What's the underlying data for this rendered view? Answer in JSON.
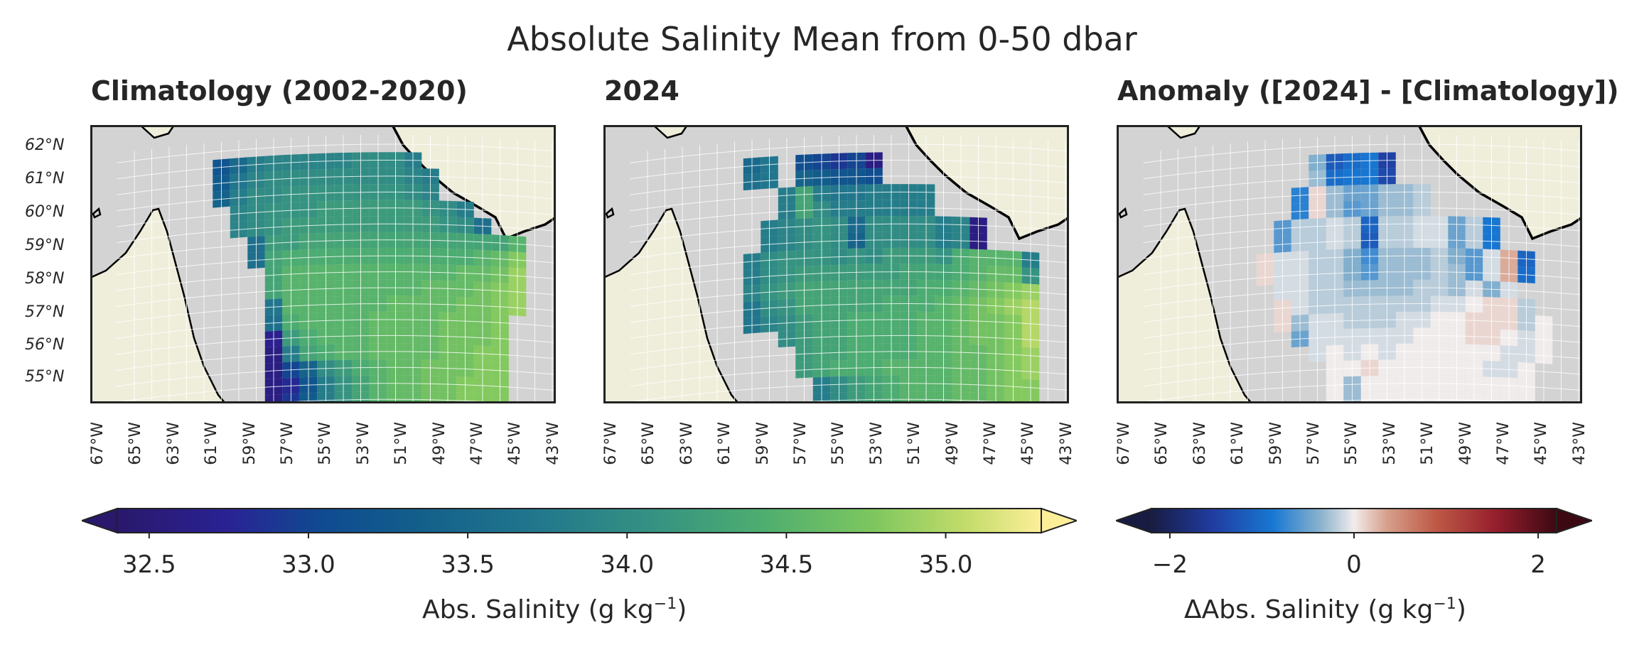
{
  "figure": {
    "suptitle": "Absolute Salinity Mean from 0-50 dbar"
  },
  "panels": [
    {
      "id": "clim",
      "title": "Climatology (2002-2020)"
    },
    {
      "id": "y2024",
      "title": "2024"
    },
    {
      "id": "anom",
      "title": "Anomaly ([2024] - [Climatology])"
    }
  ],
  "axes": {
    "lat_ticks": [
      "62°N",
      "61°N",
      "60°N",
      "59°N",
      "58°N",
      "57°N",
      "56°N",
      "55°N"
    ],
    "lon_ticks": [
      "67°W",
      "65°W",
      "63°W",
      "61°W",
      "59°W",
      "57°W",
      "55°W",
      "53°W",
      "51°W",
      "49°W",
      "47°W",
      "45°W",
      "43°W"
    ]
  },
  "colorbars": {
    "salinity": {
      "label_prefix": "Abs. Salinity (g kg",
      "label_exp": "−1",
      "label_suffix": ")",
      "ticks": [
        "32.5",
        "33.0",
        "33.5",
        "34.0",
        "34.5",
        "35.0"
      ],
      "range": [
        32.4,
        35.3
      ],
      "colormap": "haline"
    },
    "anomaly": {
      "label_prefix": "ΔAbs. Salinity (g kg",
      "label_exp": "−1",
      "label_suffix": ")",
      "ticks": [
        "−2",
        "0",
        "2"
      ],
      "range": [
        -2.2,
        2.2
      ],
      "colormap": "balance"
    }
  },
  "colors": {
    "land": "#efeedb",
    "ocean": "#d3d3d3",
    "coast": "#000000",
    "grid": "#ffffff"
  },
  "chart_data": [
    {
      "type": "heatmap",
      "title": "Climatology (2002-2020)",
      "colorbar": "Abs. Salinity (g kg−1)",
      "x": [
        -62,
        -61,
        -60,
        -59,
        -58,
        -57,
        -56,
        -55,
        -54,
        -53,
        -52,
        -51,
        -50,
        -49,
        -48,
        -47,
        -46,
        -45,
        -44
      ],
      "y": [
        62,
        61.5,
        61,
        60.5,
        60,
        59.5,
        59,
        58.5,
        58,
        57.5,
        57,
        56.5,
        56,
        55.5,
        55,
        54.5
      ],
      "values": [
        [
          33.2,
          33.5,
          33.8,
          33.9,
          33.9,
          33.9,
          33.9,
          33.9,
          34.0,
          34.0,
          34.0,
          33.8,
          null,
          null,
          null,
          null,
          null,
          null,
          null
        ],
        [
          33.3,
          33.7,
          33.9,
          34.0,
          34.0,
          34.0,
          34.0,
          34.0,
          34.0,
          34.0,
          34.0,
          33.9,
          33.8,
          null,
          null,
          null,
          null,
          null,
          null
        ],
        [
          33.4,
          33.8,
          34.0,
          34.0,
          34.1,
          34.1,
          34.1,
          34.1,
          34.1,
          34.1,
          34.1,
          34.0,
          33.9,
          null,
          null,
          null,
          null,
          null,
          null
        ],
        [
          null,
          33.9,
          34.0,
          34.1,
          34.1,
          34.1,
          34.2,
          34.2,
          34.2,
          34.2,
          34.2,
          34.2,
          34.1,
          34.0,
          33.8,
          null,
          null,
          null,
          null
        ],
        [
          null,
          33.9,
          34.0,
          34.1,
          34.2,
          34.2,
          34.2,
          34.2,
          34.2,
          34.2,
          34.2,
          34.2,
          34.2,
          34.1,
          34.0,
          33.6,
          null,
          null,
          null
        ],
        [
          null,
          null,
          33.6,
          34.2,
          34.2,
          34.3,
          34.3,
          34.3,
          34.3,
          34.3,
          34.3,
          34.3,
          34.3,
          34.3,
          34.3,
          34.3,
          34.3,
          34.5,
          null
        ],
        [
          null,
          null,
          33.6,
          34.3,
          34.4,
          34.4,
          34.4,
          34.4,
          34.4,
          34.4,
          34.4,
          34.4,
          34.4,
          34.4,
          34.4,
          34.5,
          34.6,
          34.8,
          null
        ],
        [
          null,
          null,
          null,
          34.3,
          34.5,
          34.5,
          34.5,
          34.5,
          34.5,
          34.5,
          34.5,
          34.5,
          34.5,
          34.5,
          34.6,
          34.6,
          34.7,
          34.9,
          null
        ],
        [
          null,
          null,
          null,
          34.3,
          34.5,
          34.5,
          34.5,
          34.5,
          34.5,
          34.5,
          34.5,
          34.5,
          34.6,
          34.6,
          34.6,
          34.7,
          34.8,
          34.9,
          null
        ],
        [
          null,
          null,
          null,
          33.7,
          34.5,
          34.5,
          34.5,
          34.5,
          34.5,
          34.5,
          34.6,
          34.6,
          34.6,
          34.6,
          34.7,
          34.7,
          34.8,
          34.9,
          null
        ],
        [
          null,
          null,
          null,
          33.6,
          34.4,
          34.5,
          34.5,
          34.5,
          34.5,
          34.6,
          34.6,
          34.6,
          34.6,
          34.7,
          34.7,
          34.7,
          34.8,
          null,
          null
        ],
        [
          null,
          null,
          null,
          32.7,
          34.2,
          34.4,
          34.5,
          34.5,
          34.5,
          34.6,
          34.6,
          34.6,
          34.6,
          34.7,
          34.7,
          34.7,
          34.8,
          null,
          null
        ],
        [
          null,
          null,
          null,
          32.6,
          33.8,
          34.3,
          34.4,
          34.5,
          34.5,
          34.6,
          34.6,
          34.6,
          34.6,
          34.7,
          34.7,
          34.8,
          34.8,
          null,
          null
        ],
        [
          null,
          null,
          null,
          32.6,
          33.0,
          33.4,
          34.0,
          34.2,
          34.4,
          34.5,
          34.6,
          34.6,
          34.7,
          34.7,
          34.7,
          34.8,
          34.8,
          null,
          null
        ],
        [
          null,
          null,
          null,
          32.6,
          32.8,
          33.2,
          33.8,
          34.1,
          34.3,
          34.5,
          34.6,
          34.6,
          34.7,
          34.7,
          34.8,
          34.8,
          34.8,
          null,
          null
        ],
        [
          null,
          null,
          null,
          32.6,
          32.9,
          33.3,
          33.8,
          34.1,
          34.3,
          34.5,
          34.6,
          34.6,
          34.7,
          34.7,
          34.8,
          34.8,
          34.8,
          null,
          null
        ]
      ]
    },
    {
      "type": "heatmap",
      "title": "2024",
      "colorbar": "Abs. Salinity (g kg−1)",
      "x": [
        -62,
        -61,
        -60,
        -59,
        -58,
        -57,
        -56,
        -55,
        -54,
        -53,
        -52,
        -51,
        -50,
        -49,
        -48,
        -47,
        -46,
        -45,
        -44
      ],
      "y": [
        62,
        61.5,
        61,
        60.5,
        60,
        59.5,
        59,
        58.5,
        58,
        57.5,
        57,
        56.5,
        56,
        55.5,
        55,
        54.5
      ],
      "values": [
        [
          null,
          33.5,
          33.7,
          null,
          33.1,
          33.0,
          32.9,
          33.0,
          32.6,
          null,
          null,
          null,
          null,
          null,
          null,
          null,
          null,
          null,
          null
        ],
        [
          null,
          33.6,
          33.7,
          null,
          33.4,
          33.3,
          33.2,
          33.2,
          33.1,
          null,
          null,
          null,
          null,
          null,
          null,
          null,
          null,
          null,
          null
        ],
        [
          null,
          null,
          null,
          33.8,
          34.3,
          33.8,
          33.7,
          33.7,
          33.8,
          33.8,
          33.8,
          33.8,
          null,
          null,
          null,
          null,
          null,
          null,
          null
        ],
        [
          null,
          null,
          null,
          33.8,
          34.3,
          34.0,
          33.8,
          33.8,
          33.8,
          33.8,
          33.8,
          33.8,
          null,
          null,
          null,
          null,
          null,
          null,
          null
        ],
        [
          null,
          null,
          33.8,
          33.9,
          34.0,
          34.1,
          34.0,
          33.5,
          34.0,
          34.0,
          34.0,
          34.0,
          33.8,
          33.9,
          32.6,
          null,
          null,
          null,
          null
        ],
        [
          null,
          null,
          33.8,
          33.9,
          34.0,
          34.1,
          34.0,
          33.4,
          34.0,
          34.0,
          34.0,
          34.0,
          33.8,
          33.9,
          32.6,
          null,
          null,
          null,
          null
        ],
        [
          null,
          33.8,
          34.0,
          34.1,
          34.1,
          34.1,
          34.0,
          34.1,
          34.0,
          34.2,
          34.2,
          34.2,
          34.1,
          34.4,
          34.5,
          34.5,
          34.5,
          33.8,
          null
        ],
        [
          null,
          33.8,
          34.0,
          34.1,
          34.2,
          34.2,
          34.2,
          34.2,
          34.2,
          34.2,
          34.3,
          34.3,
          34.3,
          34.4,
          34.5,
          34.6,
          34.6,
          34.1,
          null
        ],
        [
          null,
          33.9,
          34.1,
          34.2,
          34.3,
          34.3,
          34.3,
          34.3,
          34.3,
          34.3,
          34.3,
          34.4,
          34.4,
          34.5,
          34.6,
          34.7,
          34.8,
          34.9,
          null
        ],
        [
          null,
          33.7,
          34.0,
          34.1,
          34.3,
          34.3,
          34.3,
          34.3,
          34.3,
          34.4,
          34.4,
          34.4,
          34.5,
          34.6,
          34.7,
          34.8,
          34.9,
          35.0,
          null
        ],
        [
          null,
          33.7,
          33.9,
          34.0,
          34.2,
          34.3,
          34.3,
          34.4,
          34.4,
          34.4,
          34.4,
          34.5,
          34.5,
          34.6,
          34.7,
          34.7,
          34.8,
          35.0,
          null
        ],
        [
          null,
          null,
          null,
          34.0,
          34.2,
          34.3,
          34.3,
          34.4,
          34.4,
          34.4,
          34.4,
          34.5,
          34.5,
          34.6,
          34.7,
          34.7,
          34.8,
          35.0,
          null
        ],
        [
          null,
          null,
          null,
          null,
          34.2,
          34.3,
          34.3,
          34.4,
          34.4,
          34.4,
          34.4,
          34.5,
          34.5,
          34.6,
          34.6,
          34.7,
          34.8,
          34.9,
          null
        ],
        [
          null,
          null,
          null,
          null,
          34.2,
          34.3,
          34.4,
          34.4,
          34.4,
          34.5,
          34.5,
          34.5,
          34.5,
          34.6,
          34.6,
          34.7,
          34.8,
          34.9,
          null
        ],
        [
          null,
          null,
          null,
          null,
          null,
          33.8,
          34.0,
          34.2,
          34.3,
          34.4,
          34.5,
          34.5,
          34.5,
          34.6,
          34.6,
          34.7,
          34.8,
          34.8,
          null
        ],
        [
          null,
          null,
          null,
          null,
          null,
          33.8,
          34.0,
          34.2,
          34.3,
          34.4,
          34.5,
          34.5,
          34.5,
          34.6,
          34.6,
          34.7,
          34.8,
          34.8,
          null
        ]
      ]
    },
    {
      "type": "heatmap",
      "title": "Anomaly ([2024] - [Climatology])",
      "colorbar": "ΔAbs. Salinity (g kg−1)",
      "x": [
        -62,
        -61,
        -60,
        -59,
        -58,
        -57,
        -56,
        -55,
        -54,
        -53,
        -52,
        -51,
        -50,
        -49,
        -48,
        -47,
        -46,
        -45,
        -44
      ],
      "y": [
        62,
        61.5,
        61,
        60.5,
        60,
        59.5,
        59,
        58.5,
        58,
        57.5,
        57,
        56.5,
        56,
        55.5,
        55,
        54.5
      ],
      "values": [
        [
          null,
          null,
          null,
          null,
          -0.4,
          -1.2,
          -1.0,
          -0.9,
          -1.5,
          null,
          null,
          null,
          null,
          null,
          null,
          null,
          null,
          null,
          null
        ],
        [
          null,
          null,
          null,
          null,
          -0.3,
          -1.0,
          -0.9,
          -0.9,
          -1.4,
          null,
          null,
          null,
          null,
          null,
          null,
          null,
          null,
          null,
          null
        ],
        [
          null,
          null,
          null,
          -0.8,
          0.1,
          -0.3,
          -0.5,
          -0.5,
          -0.3,
          -0.3,
          -0.2,
          null,
          null,
          null,
          null,
          null,
          null,
          null,
          null
        ],
        [
          null,
          null,
          null,
          -0.8,
          0.1,
          -0.3,
          -0.6,
          -0.5,
          -0.3,
          -0.3,
          -0.2,
          null,
          null,
          null,
          null,
          null,
          null,
          null,
          null
        ],
        [
          null,
          null,
          -0.6,
          -0.2,
          -0.2,
          -0.1,
          -0.2,
          -1.1,
          -0.2,
          -0.2,
          -0.1,
          -0.1,
          -0.5,
          -0.2,
          -0.9,
          null,
          null,
          null,
          null
        ],
        [
          null,
          null,
          -0.6,
          -0.2,
          -0.2,
          -0.1,
          -0.2,
          -1.2,
          -0.2,
          -0.2,
          -0.1,
          -0.1,
          -0.5,
          -0.2,
          -0.9,
          null,
          null,
          null,
          null
        ],
        [
          null,
          0.1,
          -0.1,
          -0.1,
          -0.2,
          -0.2,
          -0.4,
          -0.7,
          -0.3,
          -0.3,
          -0.3,
          -0.2,
          -0.4,
          -0.6,
          -0.1,
          0.3,
          -1.1,
          null,
          null
        ],
        [
          null,
          0.1,
          -0.1,
          -0.1,
          -0.2,
          -0.2,
          -0.4,
          -0.6,
          -0.3,
          -0.3,
          -0.3,
          -0.2,
          -0.3,
          -0.6,
          -0.1,
          0.3,
          -1.0,
          null,
          null
        ],
        [
          null,
          null,
          -0.1,
          -0.1,
          -0.2,
          -0.2,
          -0.3,
          -0.3,
          -0.3,
          -0.3,
          -0.2,
          -0.2,
          -0.3,
          -0.1,
          -0.4,
          -0.1,
          null,
          null,
          null
        ],
        [
          null,
          null,
          0.1,
          -0.1,
          -0.2,
          -0.2,
          -0.2,
          -0.2,
          -0.2,
          -0.2,
          -0.2,
          -0.1,
          -0.1,
          0.0,
          0.1,
          0.1,
          -0.2,
          null,
          null
        ],
        [
          null,
          null,
          0.1,
          -0.3,
          -0.1,
          -0.1,
          -0.2,
          -0.2,
          -0.2,
          -0.1,
          -0.1,
          0.0,
          0.0,
          0.1,
          0.1,
          0.1,
          -0.2,
          0.0,
          null
        ],
        [
          null,
          null,
          null,
          -0.5,
          -0.1,
          -0.1,
          -0.1,
          -0.1,
          -0.1,
          -0.1,
          0.0,
          0.0,
          0.0,
          0.1,
          0.1,
          0.0,
          -0.1,
          0.0,
          null
        ],
        [
          null,
          null,
          null,
          null,
          -0.1,
          0.0,
          -0.1,
          0.0,
          -0.1,
          0.0,
          0.0,
          0.0,
          0.0,
          0.0,
          0.0,
          -0.1,
          -0.1,
          0.0,
          null
        ],
        [
          null,
          null,
          null,
          null,
          null,
          0.0,
          0.0,
          0.1,
          0.0,
          0.0,
          0.0,
          0.0,
          0.0,
          0.0,
          -0.1,
          -0.1,
          0.0,
          null,
          null
        ],
        [
          null,
          null,
          null,
          null,
          null,
          0.0,
          -0.3,
          0.0,
          0.0,
          0.0,
          0.0,
          0.0,
          0.0,
          0.0,
          0.0,
          0.0,
          0.0,
          null,
          null
        ],
        [
          null,
          null,
          null,
          null,
          null,
          0.0,
          -0.3,
          0.0,
          0.0,
          0.0,
          0.0,
          0.0,
          0.0,
          0.0,
          0.0,
          0.0,
          0.0,
          null,
          null
        ]
      ]
    }
  ]
}
